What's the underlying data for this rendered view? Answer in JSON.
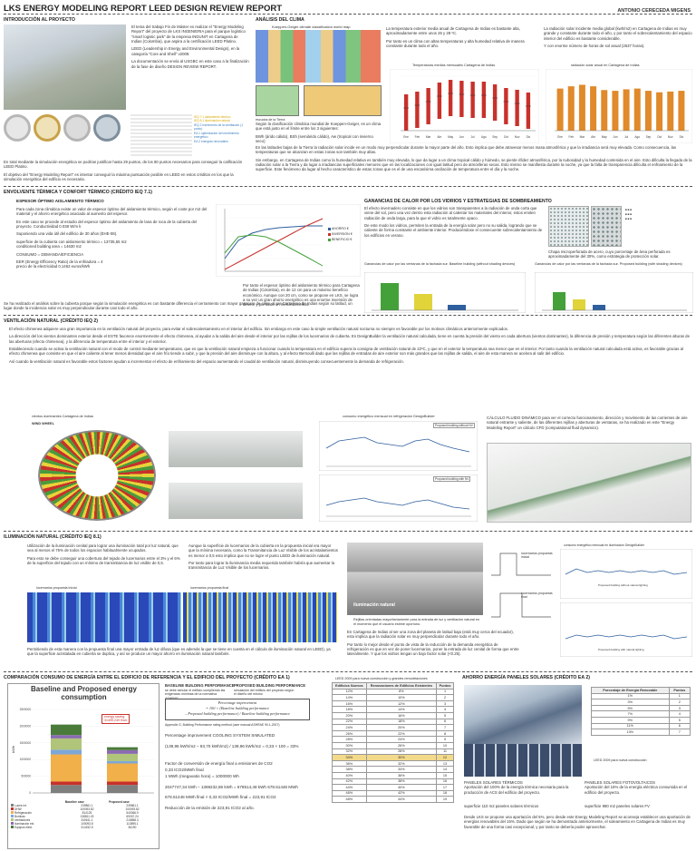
{
  "header": {
    "title": "LKS ENERGY MODELING REPORT  LEED DESIGN REVIEW REPORT",
    "author": "ANTONIO CERECEDA MIGENS"
  },
  "colors": {
    "gold": "#c8a24a",
    "gray_photo": "#c9ccc7",
    "red": "#c8312b",
    "green_bar": "#44a13a",
    "yellow_bar": "#e0d43a",
    "blue_line": "#2e5f9e"
  },
  "intro": {
    "title": "INTRODUCCIÓN AL PROYECTO",
    "p1": "El tema del trabajo Fin de Máster es realizar el “Energy Modeling Report” del proyecto de LKS INGENIERIA para el parque logístico “smart logistic park” de la empresa INDUNIT en Cartagena de Indias (Colombia), que aspira a la certificación LEED Platino.",
    "p2": "LEED (Leadership in Energy and Environmental Design), en la categoría “Core and Shell” v2009.",
    "p3": "La documentación se envía al USGBC en este caso a la finalización de la fase de diseño DESIGN REVIEW REPORT.",
    "legend1": "IEQ 7.1 aislamiento térmico",
    "legend2": "IEQ 8.1 iluminación natural",
    "legend3": "IEQ 2 incremento de la ventilación (1 punto)",
    "legend4": "EA 1 optimización del rendimiento energético",
    "legend5": "EA 2 energías renovables",
    "p4": "En total mediante la simulación energética se podrían justificar hasta 29 puntos, de los 80 puntos necesarios para conseguir la calificación LEED Platino.",
    "p5": "El objetivo del “Energy Modeling Report” es intentar conseguir la máxima puntuación posible en LEED en estos créditos en los que la simulación energética del edificio es necesaria."
  },
  "climate": {
    "title": "ANÁLISIS DEL CLIMA",
    "map_title": "Koeppen-Geiger climate classification world map",
    "map_caption": "escudos de la Tierra",
    "text1": "Según la clasificación climática mundial de Koeppen-Geiger, es un clima que está justo en el límite entre los 3 siguientes:",
    "text2": "BWh (árido cálido), BSh (semiárido cálido), Aw (tropical con invierno seco)",
    "temp_text1": "La temperatura exterior media anual de Cartagena de Indias es bastante alta, aproximadamente entre unos 26 y 28 ºC.",
    "temp_text2": "Por tanto es un clima con altas temperaturas y alta humedad relativa de manera constante durante todo el año.",
    "temp_chart_title": "Temperaturas medias mensuales Cartagena de Indias",
    "rad_text1": "La radiación solar incidente media global (kwh/m2) en Cartagena de Indias es muy grande y constante durante todo el año, y por tanto el sobrecalentamiento del espacio interior del edificio es bastante considerable.",
    "rad_text2": "Y con enorme número de horas de sol anual (2637 horas).",
    "rad_chart_title": "radiación solar anual en Cartagena de Indias",
    "text3": "En las latitudes bajas de la Tierra la radiación solar incide en un modo muy perpendicular durante la mayor parte del año. Esto implica que debe atravesar menos masa atmosférica y que la irradiancia será muy elevada. Como consecuencia, las temperaturas que se alcanzan en estas zonas son también muy altas.",
    "text4": "Sin embargo, en Cartagena de Indias como la humedad relativa es también muy elevada, lo que da lugar a un clima tropical cálido y húmedo, se pierde rifidez atmosférica, por la nubosidad y la humedad contenida en el aire. Esto dificulta la llegada de la radiación solar a la Tierra y da lugar a irradiancias superficiales menores que en las localizaciones con igual latitud pero de atmósferas secas. Esto mismo se manifiesta durante la noche, ya que la falta de transparencia dificulta el enfriamiento de la superficie. Este fenómeno da lugar al hecho característico de estas zonas que es el de una escasísima oscilación de temperatura entre el día y la noche."
  },
  "envelope": {
    "title": "ENVOLVENTE TÉRMICA Y CONFORT TÉRMICO (CRÉDITO IEQ 7.1)",
    "sub": "ESPESOR ÓPTIMO AISLAMIENTO TÉRMICO",
    "p1": "Para cada zona climática existe un valor de espesor óptimo del aislamiento térmico, según el coste por m2 del material y el ahorro energético asociado al aumento del espesor.",
    "p2": "En este caso se procede al estudio del espesor óptimo del aislamiento de lana de roca de la cubierta del proyecto. Conductividad 0.038 W/m k",
    "p3": "Suponiendo una vida útil del edificio de 30 años (EHE-08).",
    "p4": "superficie de la cubierta con aislamiento térmico = 13735,55 m2",
    "p5": "conditioned building area = 14630 m2",
    "p6": "CONSUMO = DEMANDA/EFICIENCIA",
    "p7": "EER (Energy Efficiency Ratio) de la enfriadora = 4",
    "p8": "precio de la electricidad 0.1462 euros/kWh",
    "chart_text": "Por tanto el espesor óptimo del aislamiento térmico para Cartagena de Indias (Colombia), es de 12 cm para un máximo beneficio económico. Aunque con 20 cm, como se propone en LKS, se logra a su vez un gran ahorro energético es una enorme inversión de dinero, y por tanto un menor beneficio.",
    "conclusion": "Se ha realizado el análisis sobre la cubierta porque según la simulación energética es con bastante diferencia el cerramiento con mayor ganancia de calor, al ser Cartagena de Indias según su latitud, un lugar donde la incidencia solar es muy perpendicular durante casi todo el año.",
    "series": [
      "AHORRO €",
      "INVERSIÓN €",
      "BENEFICIO €"
    ]
  },
  "glass": {
    "title": "GANANCIAS DE CALOR POR LOS VIDRIOS Y ESTRATEGIAS DE SOMBREAMIENTO",
    "p1": "El efecto invernadero consiste en que los vidrios son transparentes a la radiación de onda corta que viene del sol, pero una vez dentro esta radiación al calentar los materiales del interior, estos emiten radiación de onda larga, para la que el vidrio es totalmente opaco.",
    "p2": "De este modo los vidrios, permiten la entrada de la energía solar pero no su salida, logrando que se caliente de forma constante el ambiente interior. Produciéndose el consecuente sobrecalentamiento de los edificios en verano.",
    "steel_text": "Chapa microperforada de acero, cuyo porcentaje de área perforada es aproximadamente del 30%, como estrategia de protección solar.",
    "baseline_cap": "Ganancias de calor por las ventanas de la fachada sur. Baseline building (without shading devices)",
    "proposed_cap": "Ganancias de calor por las ventanas de la fachada sur. Proposed building (with shading devices)"
  },
  "vent": {
    "title": "VENTILACIÓN NATURAL (CRÉDITO IEQ 2)",
    "p1": "El efecto chimenea adquiere una gran importancia en la ventilación natural del proyecto, para evitar el sobrecalentamiento en el interior del edificio. Sin embargo en este caso la simple ventilación natural nocturna no siempre es favorable por los motivos climáticos anteriormente explicados.",
    "p2": "La dirección del los vientos dominantes exterior desde el ESTE favorece enormemente el efecto chimenea, al ayudar a la salida del aire desde el interior por las rejillas de los lucernarios de cubierta. En DesignBuilder la ventilación natural calculada, tiene en cuenta la presión del viento en cada abertura (vientos dominantes), la diferencia de presión y temperatura según las diferentes alturas de las aberturas (efecto chimenea), y la diferencia de temperatura entre el interior y el exterior.",
    "p3": "Estableciendo cuando se activa la ventilación natural con el modo de control mediante temperaturas, que es que la ventilación natural empieza a funcionar cuando la temperatura en el edificio supera la consigna de ventilación natural de 22ºC, y que en el exterior la temperatura sea menor que en el interior. Por tanto cuando la ventilación natural calculada está activa, es favorable gracias al efecto chimenea que consiste en que el aire caliente al tener menos densidad que el aire frío tiende a subir, y que la presión del aire disminuye con la altura, y al efecto Bernoulli dado que las rejillas de entradas de aire exterior son más grandes que las rejillas de salida, el aire de esta manera se acelera al salir del edificio.",
    "p4": "Así cuando la ventilación natural es favorable estos factores ayudan a incrementar el efecto de enfriamiento del espacio aumentando el caudal de ventilación natural, disminuyendo consecuentemente la demanda de refrigeración.",
    "wind_title": "vientos dominantes Cartagena de Indias",
    "wind_label": "WIND WHEEL",
    "chart_title": "consumo energético mensual en refrigeración DesignBuilder",
    "chart_label1": "Proposed building without NV",
    "chart_label2": "Proposed building with NV",
    "cfd_text": "CÁLCULO FLUIDO DINÁMICO para ver el correcto funcionamiento, dirección y movimiento de las corrientes de aire natural entrante y saliente, de las diferentes rejillas y aberturas de ventanas, se ha realizado en este “Energy Modeling Report” un cálculo CFD (computational fluid dynamics)."
  },
  "light": {
    "title": "ILUMINACIÓN NATURAL (CRÉDITO IEQ 8.1)",
    "p1": "Utilización de la iluminación cenital para lograr una iluminación total por luz natural, que sea al menos el 75% de todos los espacios habitualmente ocupados.",
    "p2": "Para esto se debe conseguir una cobertura del tejado de lucernarios entre el 3% y el 6% de la superficie del tejado con un mínimo de transmitancia de luz visible de 0,5.",
    "p3": "Aunque la superficie de lucernarios de la cubierta en la propuesta inicial era mayor que la mínima necesaria, como la Transmitancia de Luz Visible de los acristalamientos es menor a 0,5 esto implica que no se logre el punto LEED de iluminación natural.",
    "p4": "Por tanto para lograr la iluminancia media requerida también habría que aumentar la transmitancia de Luz Visible de los lucernarios.",
    "img1": "lucernarios propuesta inicial",
    "img2": "lucernarios propuesta final",
    "p5": "Permitiendo de esta manera con la propuesta final una mayor entrada de luz difusa (que es además la que se tiene en cuenta en el cálculo de iluminación natural en LEED), ya que la superficie acristalada en cubierta se duplica, y así se produce un mayor ahorro en iluminación natural también.",
    "render_label": "iluminación natural",
    "render_cap": "Rejillas orientadas mayoritariamente para la entrada de luz y ventilación natural en el momento que el usuario estime oportuno.",
    "p6": "En Cartagena de Indias al ser una zona del planeta de latitud baja (está muy cerca del ecuador), esto implica que la radiación solar es muy perpendicular durante todo el año.",
    "p7": "Por tanto lo mejor desde el punto de vista de la reducción de la demanda energética de refrigeración es que en vez de poner lucernarios, poner la entrada de luz cenital de forma que entre lateralmente. Y que los vidrios tengan un bajo factor solar (<0.25).",
    "sky1": "lucernarios propuesta inicial",
    "sky2": "lucernarios propuesta final",
    "chart_title": "consumo energético mensual en iluminación DesignBuilder",
    "chart_label1": "Proposed building without natural lighting",
    "chart_label2": "Proposed building with natural lighting"
  },
  "compare": {
    "title": "COMPARACIÓN CONSUMO DE ENERGÍA ENTRE EL EDIFICIO DE REFERENCIA Y EL EDIFICIO DEL PROYECTO (CRÉDITO EA 1)",
    "chart_title": "Baseline and Proposed energy consumption",
    "ylabel": "kWh",
    "savings_label1": "energy saving",
    "savings_label2": "31499,249 Kwh",
    "baseline_head": "BASELINE BUILDING PERFORMANCE",
    "baseline_desc": "se debe simular el edificio cumpliendo las exigencias mínimas de la normativa ASHRAE",
    "proposed_head": "PROPOSED BUILDING PERFORMANCE",
    "proposed_desc": "simulación del edificio del proyecto según el diseño del mismo",
    "formula1": "Percentage improvement",
    "formula2": "= 100 × (Baseline building performance",
    "formula3": "– Proposed building performance) / Baseline building performance",
    "appendix": "Appendix G, Building Performance rating method (user manual ASHRAE 90.1-2007)",
    "f1": "Percentage improvement COOLING SYSTEM SIMULATED",
    "f2": "(139,96 kWh/m2 – 93,70 kWh/m2) / 139,96 kWh/m2 = 0,33 × 100 = 33%",
    "f3": "Factor de conversión de energía final a emisiones de CO2",
    "f4": "0,33 tCO2/MWh final",
    "f5": "1 MWh (megavatio hora) = 1000000 Wh",
    "f6": "2047747,34 kWh – 1369232,86 kWh = 678514,48 kWh 678.51448 MWh",
    "f7": "678.51448 MWh final  ×  0,33 tCO2/MWh final  =  223,91 tCO2",
    "f8": "Reducción de la emisión de 223,91 tCO2 al año.",
    "table_title": "LEED 2009 para nueva construcción y grandes remodelaciones",
    "table_head": [
      "Edificios Nuevos",
      "Renovaciones de Edificios Existentes",
      "Puntos"
    ],
    "table_rows": [
      [
        "12%",
        "8%",
        "1"
      ],
      [
        "14%",
        "10%",
        "2"
      ],
      [
        "16%",
        "12%",
        "3"
      ],
      [
        "18%",
        "14%",
        "4"
      ],
      [
        "20%",
        "16%",
        "5"
      ],
      [
        "22%",
        "18%",
        "6"
      ],
      [
        "24%",
        "20%",
        "7"
      ],
      [
        "26%",
        "22%",
        "8"
      ],
      [
        "28%",
        "24%",
        "9"
      ],
      [
        "30%",
        "26%",
        "10"
      ],
      [
        "32%",
        "28%",
        "11"
      ],
      [
        "34%",
        "30%",
        "12"
      ],
      [
        "36%",
        "32%",
        "13"
      ],
      [
        "38%",
        "34%",
        "14"
      ],
      [
        "40%",
        "36%",
        "15"
      ],
      [
        "42%",
        "38%",
        "16"
      ],
      [
        "44%",
        "40%",
        "17"
      ],
      [
        "46%",
        "42%",
        "18"
      ],
      [
        "48%",
        "44%",
        "19"
      ]
    ]
  },
  "renew": {
    "title": "AHORRO ENERGÍA PANELES SOLARES (CRÉDITO EA 2)",
    "thermal_head": "PANELES SOLARES TÉRMICOS",
    "thermal_text": "Aportación del 100% de la energía térmica necesaria para la producción de ACS del edificio del proyecto.",
    "pv_head": "PANELES SOLARES FOTOVOLTAICOS",
    "pv_text": "Aportación del 15% de la energía eléctrica consumida en el edificio del proyecto.",
    "thermal_area": "superficie 110 m2 paneles solares térmicos",
    "pv_area": "superficie 980 m2 paneles solares FV",
    "table_head": [
      "Porcentaje de Energía Renovable",
      "Puntos"
    ],
    "table_rows": [
      [
        "1%",
        "1"
      ],
      [
        "3%",
        "2"
      ],
      [
        "5%",
        "3"
      ],
      [
        "7%",
        "4"
      ],
      [
        "9%",
        "5"
      ],
      [
        "11%",
        "6"
      ],
      [
        "13%",
        "7"
      ]
    ],
    "table_caption": "LEED 2009 para nueva construcción",
    "conclusion": "Desde LKS se propone una aportación del 5%, pero desde este Energy Modeling Report se aconseja establecer una aportación de energías renovables del 15%. Dado que según se ha demostrado anteriormente, el soleamiento en Cartagena de Indias es muy favorable de una forma casi excepcional, y por tanto se debería poder aprovechar."
  },
  "chart_data": [
    {
      "type": "bar",
      "title": "Baseline and Proposed energy consumption",
      "ylabel": "kWh",
      "categories": [
        "Baseline case",
        "Proposed case"
      ],
      "ylim": [
        0,
        2500000
      ],
      "series": [
        {
          "name": "Luces int.",
          "values": [
            239861.1,
            239861.1
          ]
        },
        {
          "name": "DHW",
          "values": [
            100093.82,
            100093.82
          ]
        },
        {
          "name": "Refrigeración",
          "values": [
            814125,
            543066.9
          ]
        },
        {
          "name": "Bombas",
          "values": [
            138811.03,
            69267.24
          ]
        },
        {
          "name": "ventiladores",
          "values": [
            340611.1,
            218858.3
          ]
        },
        {
          "name": "Iluminación ext.",
          "values": [
            100093.8,
            113895.1
          ]
        },
        {
          "name": "Equipos eléct.",
          "values": [
            314152.5,
            84190
          ]
        }
      ]
    },
    {
      "type": "bar",
      "title": "Temperaturas medias mensuales Cartagena de Indias",
      "categories": [
        "Ene",
        "Feb",
        "Mar",
        "Abr",
        "May",
        "Jun",
        "Jul",
        "Ago",
        "Sep",
        "Oct",
        "Nov",
        "Dic"
      ],
      "series": [
        {
          "name": "",
          "values": [
            26.5,
            26.8,
            27.2,
            27.8,
            28.1,
            28,
            27.9,
            27.9,
            27.6,
            27.2,
            27,
            26.7
          ]
        }
      ]
    },
    {
      "type": "bar",
      "title": "radiación solar anual en Cartagena de Indias",
      "categories": [
        "Ene",
        "Feb",
        "Mar",
        "Abr",
        "May",
        "Jun",
        "Jul",
        "Ago",
        "Sep",
        "Oct",
        "Nov",
        "Dic"
      ],
      "series": [
        {
          "name": "",
          "values": [
            5.6,
            5.9,
            6.1,
            5.9,
            5.4,
            5.3,
            5.5,
            5.6,
            5.3,
            5.1,
            5.2,
            5.3
          ]
        }
      ]
    }
  ]
}
